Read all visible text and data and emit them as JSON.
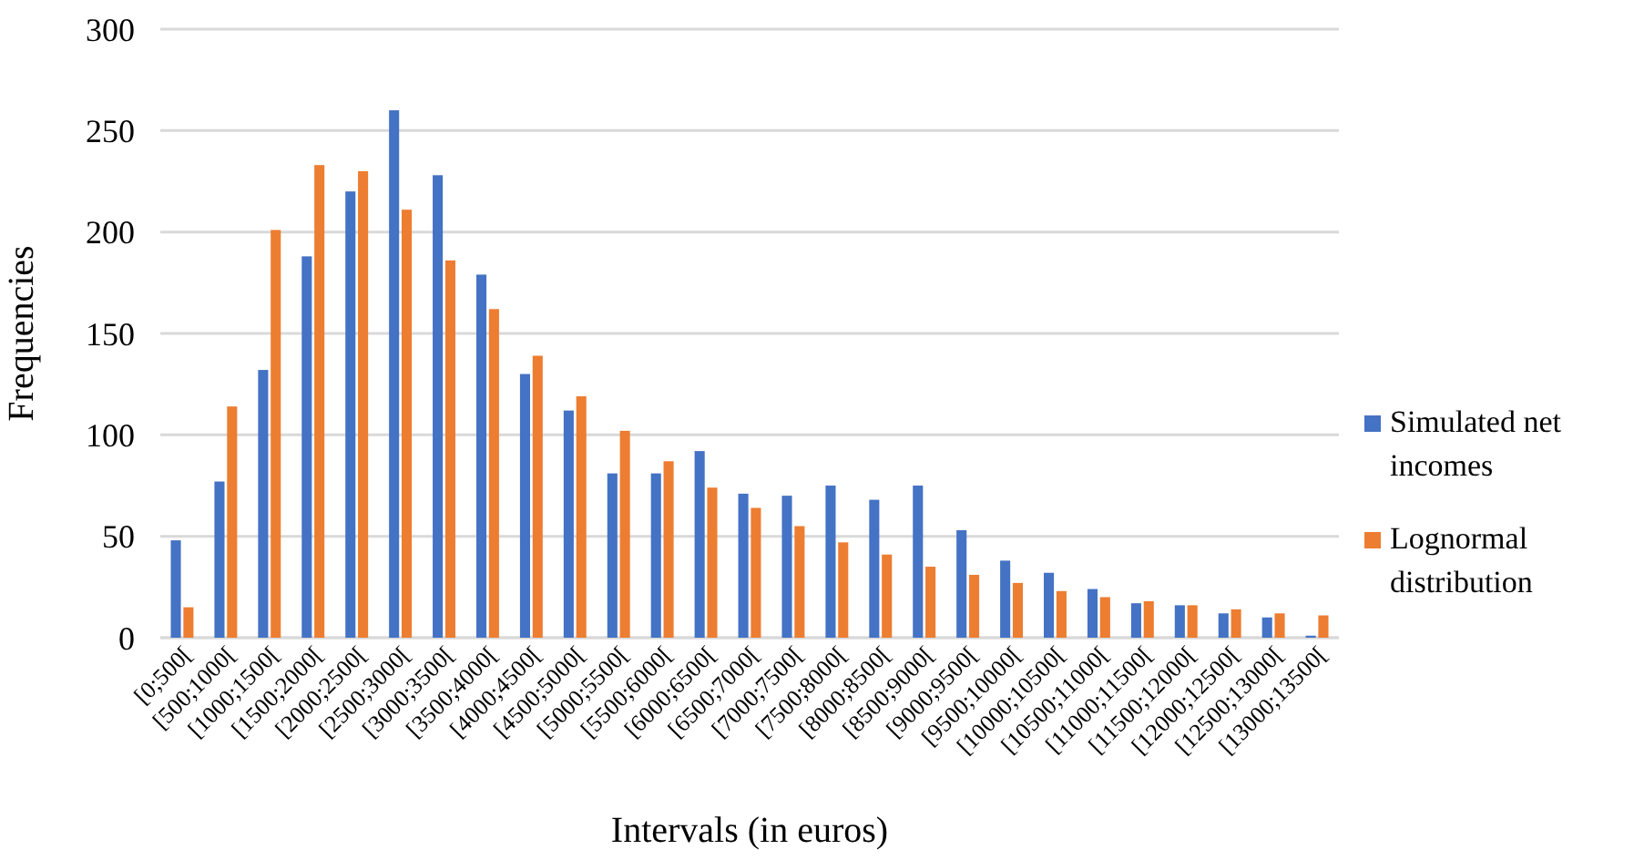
{
  "chart_data": {
    "type": "bar",
    "xlabel": "Intervals (in euros)",
    "ylabel": "Frequencies",
    "categories": [
      "[0;500[",
      "[500;1000[",
      "[1000;1500[",
      "[1500;2000[",
      "[2000;2500[",
      "[2500;3000[",
      "[3000;3500[",
      "[3500;4000[",
      "[4000;4500[",
      "[4500;5000[",
      "[5000;5500[",
      "[5500;6000[",
      "[6000;6500[",
      "[6500;7000[",
      "[7000;7500[",
      "[7500;8000[",
      "[8000;8500[",
      "[8500;9000[",
      "[9000;9500[",
      "[9500;10000[",
      "[10000;10500[",
      "[10500;11000[",
      "[11000;11500[",
      "[11500;12000[",
      "[12000;12500[",
      "[12500;13000[",
      "[13000;13500["
    ],
    "series": [
      {
        "name": "Simulated net incomes",
        "color": "#4472c4",
        "values": [
          48,
          77,
          132,
          188,
          220,
          260,
          228,
          179,
          130,
          112,
          81,
          81,
          92,
          71,
          70,
          75,
          68,
          75,
          53,
          38,
          32,
          24,
          17,
          16,
          12,
          10,
          1
        ]
      },
      {
        "name": "Lognormal distribution",
        "color": "#ed7d31",
        "values": [
          15,
          114,
          201,
          233,
          230,
          211,
          186,
          162,
          139,
          119,
          102,
          87,
          74,
          64,
          55,
          47,
          41,
          35,
          31,
          27,
          23,
          20,
          18,
          16,
          14,
          12,
          11
        ]
      }
    ],
    "ylim": [
      0,
      300
    ],
    "yticks": [
      0,
      50,
      100,
      150,
      200,
      250,
      300
    ],
    "grid": "y",
    "legend": "right"
  }
}
